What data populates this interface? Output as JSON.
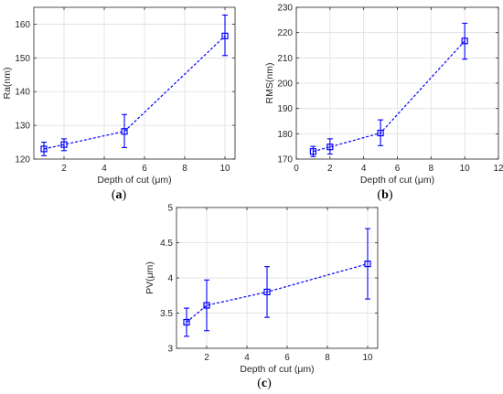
{
  "chart_data": [
    {
      "type": "line",
      "panel_label": "(a)",
      "panel_letter": "a",
      "xlabel": "Depth of cut (μm)",
      "ylabel": "Ra(nm)",
      "xlim": [
        0.5,
        10.5
      ],
      "ylim": [
        120,
        165
      ],
      "xticks": [
        2,
        4,
        6,
        8,
        10
      ],
      "yticks": [
        120,
        130,
        140,
        150,
        160
      ],
      "grid": true,
      "marker": "square",
      "line_style": "dashed",
      "color": "#0000ff",
      "series": [
        {
          "x": [
            1,
            2,
            5,
            10
          ],
          "y": [
            123,
            124.3,
            128.2,
            156.5
          ],
          "err_low": [
            2,
            1.8,
            4.8,
            5.8
          ],
          "err_high": [
            2,
            1.7,
            5,
            6.2
          ]
        }
      ]
    },
    {
      "type": "line",
      "panel_label": "(b)",
      "panel_letter": "b",
      "xlabel": "Depth of cut (μm)",
      "ylabel": "RMS(nm)",
      "xlim": [
        0,
        12
      ],
      "ylim": [
        170,
        230
      ],
      "xticks": [
        0,
        2,
        4,
        6,
        8,
        10,
        12
      ],
      "yticks": [
        170,
        180,
        190,
        200,
        210,
        220,
        230
      ],
      "grid": true,
      "marker": "square",
      "line_style": "dashed",
      "color": "#0000ff",
      "series": [
        {
          "x": [
            1,
            2,
            5,
            10
          ],
          "y": [
            173,
            174.8,
            180.3,
            216.7
          ],
          "err_low": [
            2,
            2.8,
            5,
            7.2
          ],
          "err_high": [
            2,
            3.2,
            5.2,
            7
          ]
        }
      ]
    },
    {
      "type": "line",
      "panel_label": "(c)",
      "panel_letter": "c",
      "xlabel": "Depth of cut (μm)",
      "ylabel": "PV(μm)",
      "xlim": [
        0.5,
        10.5
      ],
      "ylim": [
        3,
        5
      ],
      "xticks": [
        2,
        4,
        6,
        8,
        10
      ],
      "yticks": [
        3,
        3.5,
        4,
        4.5,
        5
      ],
      "grid": true,
      "marker": "square",
      "line_style": "dashed",
      "color": "#0000ff",
      "series": [
        {
          "x": [
            1,
            2,
            5,
            10
          ],
          "y": [
            3.37,
            3.61,
            3.8,
            4.2
          ],
          "err_low": [
            0.2,
            0.36,
            0.36,
            0.5
          ],
          "err_high": [
            0.2,
            0.36,
            0.36,
            0.5
          ]
        }
      ]
    }
  ]
}
